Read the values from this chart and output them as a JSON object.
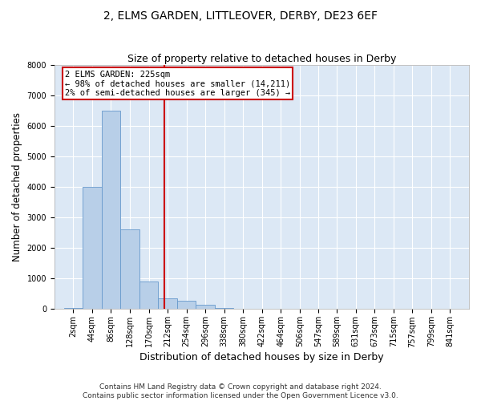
{
  "title": "2, ELMS GARDEN, LITTLEOVER, DERBY, DE23 6EF",
  "subtitle": "Size of property relative to detached houses in Derby",
  "xlabel": "Distribution of detached houses by size in Derby",
  "ylabel": "Number of detached properties",
  "bin_edges": [
    2,
    44,
    86,
    128,
    170,
    212,
    254,
    296,
    338,
    380,
    422,
    464,
    506,
    547,
    589,
    631,
    673,
    715,
    757,
    799,
    841
  ],
  "bin_labels": [
    "2sqm",
    "44sqm",
    "86sqm",
    "128sqm",
    "170sqm",
    "212sqm",
    "254sqm",
    "296sqm",
    "338sqm",
    "380sqm",
    "422sqm",
    "464sqm",
    "506sqm",
    "547sqm",
    "589sqm",
    "631sqm",
    "673sqm",
    "715sqm",
    "757sqm",
    "799sqm",
    "841sqm"
  ],
  "bar_heights": [
    30,
    4000,
    6500,
    2600,
    900,
    350,
    280,
    130,
    50,
    20,
    10,
    5,
    5,
    5,
    5,
    5,
    5,
    5,
    5,
    5,
    5
  ],
  "bar_color": "#b8cfe8",
  "bar_edge_color": "#6699cc",
  "property_size": 225,
  "vline_color": "#cc0000",
  "annotation_text": "2 ELMS GARDEN: 225sqm\n← 98% of detached houses are smaller (14,211)\n2% of semi-detached houses are larger (345) →",
  "annotation_box_color": "#cc0000",
  "annotation_text_color": "#000000",
  "ylim": [
    0,
    8000
  ],
  "yticks": [
    0,
    1000,
    2000,
    3000,
    4000,
    5000,
    6000,
    7000,
    8000
  ],
  "bg_color": "#dce8f5",
  "grid_color": "#ffffff",
  "footer_line1": "Contains HM Land Registry data © Crown copyright and database right 2024.",
  "footer_line2": "Contains public sector information licensed under the Open Government Licence v3.0.",
  "title_fontsize": 10,
  "subtitle_fontsize": 9,
  "axis_label_fontsize": 8.5,
  "tick_fontsize": 7,
  "footer_fontsize": 6.5
}
